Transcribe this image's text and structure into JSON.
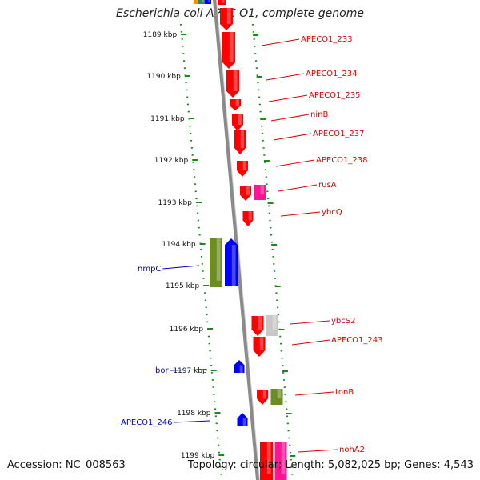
{
  "title": "Escherichia coli APEC O1, complete genome",
  "footer": {
    "accession": "Accession: NC_008563",
    "topology": "Topology: circular; Length: 5,082,025 bp; Genes: 4,543"
  },
  "colors": {
    "forward_gene": "#ff0000",
    "reverse_gene": "#0000ff",
    "olive_gene": "#6b8e23",
    "pink_gene": "#ff1493",
    "gray_gene": "#c8c8c8",
    "backbone": "#8a8a8a",
    "tick": "#1a8a1a",
    "label_forward": "#e00000",
    "label_reverse": "#0000cc"
  },
  "ticks": [
    {
      "label": "1189 kbp"
    },
    {
      "label": "1190 kbp"
    },
    {
      "label": "1191 kbp"
    },
    {
      "label": "1192 kbp"
    },
    {
      "label": "1193 kbp"
    },
    {
      "label": "1194 kbp"
    },
    {
      "label": "1195 kbp"
    },
    {
      "label": "1196 kbp"
    },
    {
      "label": "1197 kbp"
    },
    {
      "label": "1198 kbp"
    },
    {
      "label": "1199 kbp"
    }
  ],
  "gene_labels": [
    {
      "text": "APECO1_233",
      "strand": "forward"
    },
    {
      "text": "APECO1_234",
      "strand": "forward"
    },
    {
      "text": "APECO1_235",
      "strand": "forward"
    },
    {
      "text": "ninB",
      "strand": "forward"
    },
    {
      "text": "APECO1_237",
      "strand": "forward"
    },
    {
      "text": "APECO1_238",
      "strand": "forward"
    },
    {
      "text": "rusA",
      "strand": "forward"
    },
    {
      "text": "ybcQ",
      "strand": "forward"
    },
    {
      "text": "ybcS2",
      "strand": "forward"
    },
    {
      "text": "APECO1_243",
      "strand": "forward"
    },
    {
      "text": "tonB",
      "strand": "forward"
    },
    {
      "text": "nohA2",
      "strand": "forward"
    },
    {
      "text": "nmpC",
      "strand": "reverse"
    },
    {
      "text": "bor",
      "strand": "reverse"
    },
    {
      "text": "APECO1_246",
      "strand": "reverse"
    }
  ]
}
